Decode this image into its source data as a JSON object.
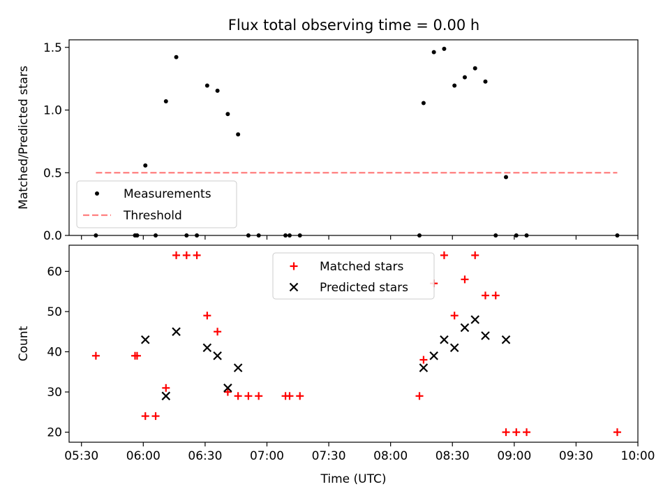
{
  "chart_data": [
    {
      "type": "scatter",
      "title": "Flux total observing time = 0.00 h",
      "xlabel": "",
      "ylabel": "Matched/Predicted stars",
      "ylim": [
        0,
        1.56
      ],
      "yticks": [
        0.0,
        0.5,
        1.0,
        1.5
      ],
      "ytick_labels": [
        "0.0",
        "0.5",
        "1.0",
        "1.5"
      ],
      "xlim": [
        "05:24",
        "10:00"
      ],
      "legend": {
        "position": "lower-left",
        "entries": [
          "Measurements",
          "Threshold"
        ]
      },
      "threshold": {
        "name": "Threshold",
        "value": 0.5,
        "x_start": "05:37",
        "x_end": "09:50",
        "color": "#ff7f7f"
      },
      "series": [
        {
          "name": "Measurements",
          "color": "#000000",
          "x": [
            "05:37",
            "05:56",
            "05:57",
            "06:01",
            "06:06",
            "06:11",
            "06:16",
            "06:21",
            "06:26",
            "06:31",
            "06:36",
            "06:41",
            "06:46",
            "06:51",
            "06:56",
            "07:09",
            "07:11",
            "07:16",
            "08:14",
            "08:16",
            "08:21",
            "08:26",
            "08:31",
            "08:36",
            "08:41",
            "08:46",
            "08:51",
            "08:56",
            "09:01",
            "09:06",
            "09:50"
          ],
          "y": [
            0,
            0,
            0,
            0.558,
            0,
            1.07,
            1.422,
            0,
            0,
            1.195,
            1.154,
            0.968,
            0.806,
            0,
            0,
            0,
            0,
            0,
            0,
            1.056,
            1.462,
            1.488,
            1.195,
            1.261,
            1.333,
            1.227,
            0,
            0.465,
            0,
            0,
            0
          ]
        }
      ]
    },
    {
      "type": "scatter",
      "title": "",
      "xlabel": "Time (UTC)",
      "ylabel": "Count",
      "ylim": [
        17.5,
        66.5
      ],
      "yticks": [
        20,
        30,
        40,
        50,
        60
      ],
      "ytick_labels": [
        "20",
        "30",
        "40",
        "50",
        "60"
      ],
      "xlim": [
        "05:24",
        "10:00"
      ],
      "xtick_labels": [
        "05:30",
        "06:00",
        "06:30",
        "07:00",
        "07:30",
        "08:00",
        "08:30",
        "09:00",
        "09:30",
        "10:00"
      ],
      "legend": {
        "position": "upper-center",
        "entries": [
          "Matched stars",
          "Predicted stars"
        ]
      },
      "series": [
        {
          "name": "Matched stars",
          "color": "#ff0000",
          "marker": "+",
          "x": [
            "05:37",
            "05:56",
            "05:57",
            "06:01",
            "06:06",
            "06:11",
            "06:16",
            "06:21",
            "06:26",
            "06:31",
            "06:36",
            "06:41",
            "06:46",
            "06:51",
            "06:56",
            "07:09",
            "07:11",
            "07:16",
            "08:14",
            "08:16",
            "08:21",
            "08:26",
            "08:31",
            "08:36",
            "08:41",
            "08:46",
            "08:51",
            "08:56",
            "09:01",
            "09:06",
            "09:50"
          ],
          "y": [
            39,
            39,
            39,
            24,
            24,
            31,
            64,
            64,
            64,
            49,
            45,
            30,
            29,
            29,
            29,
            29,
            29,
            29,
            29,
            38,
            57,
            64,
            49,
            58,
            64,
            54,
            54,
            20,
            20,
            20,
            20
          ]
        },
        {
          "name": "Predicted stars",
          "color": "#000000",
          "marker": "x",
          "x": [
            "06:01",
            "06:11",
            "06:16",
            "06:31",
            "06:36",
            "06:41",
            "06:46",
            "08:16",
            "08:21",
            "08:26",
            "08:31",
            "08:36",
            "08:41",
            "08:46",
            "08:56"
          ],
          "y": [
            43,
            29,
            45,
            41,
            39,
            31,
            36,
            36,
            39,
            43,
            41,
            46,
            48,
            44,
            43
          ]
        }
      ]
    }
  ]
}
